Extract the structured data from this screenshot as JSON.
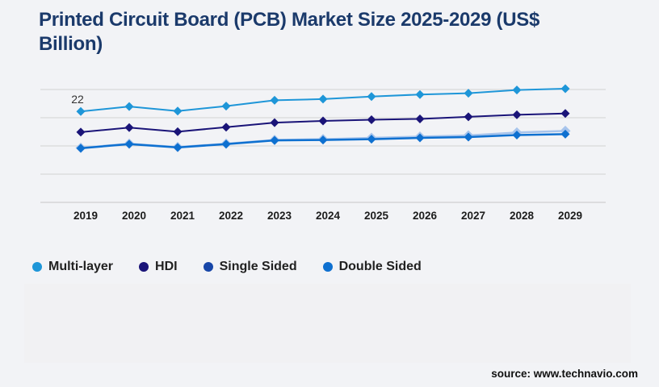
{
  "title": "Printed Circuit Board (PCB) Market Size 2025-2029 (US$ Billion)",
  "source_note": "source: www.technavio.com",
  "legend": {
    "items": [
      {
        "label": "Multi-layer",
        "color": "#1e96d8"
      },
      {
        "label": "HDI",
        "color": "#1a1478"
      },
      {
        "label": "Single Sided",
        "color": "#1746a8"
      },
      {
        "label": "Double Sided",
        "color": "#0e70d0"
      }
    ]
  },
  "chart_data": {
    "type": "line",
    "title": "Printed Circuit Board (PCB) Market Size 2025-2029 (US$ Billion)",
    "x": [
      2019,
      2020,
      2021,
      2022,
      2023,
      2024,
      2025,
      2026,
      2027,
      2028,
      2029
    ],
    "series": [
      {
        "name": "Multi-layer",
        "line_color": "#1e96d8",
        "marker_color": "#1e96d8",
        "values": [
          22,
          23.2,
          22.1,
          23.3,
          24.7,
          25.0,
          25.6,
          26.1,
          26.4,
          27.2,
          27.5
        ]
      },
      {
        "name": "HDI",
        "line_color": "#1a1478",
        "marker_color": "#1a1478",
        "values": [
          17.0,
          18.1,
          17.1,
          18.2,
          19.3,
          19.7,
          20.0,
          20.2,
          20.7,
          21.2,
          21.5
        ]
      },
      {
        "name": "Single Sided",
        "line_color": "#a7c4ec",
        "marker_color": "#a7c4ec",
        "values": [
          13.2,
          14.2,
          13.4,
          14.2,
          15.1,
          15.3,
          15.6,
          15.9,
          16.2,
          16.9,
          17.3
        ]
      },
      {
        "name": "Double Sided",
        "line_color": "#0e70d0",
        "marker_color": "#0e70d0",
        "values": [
          13.1,
          14.1,
          13.3,
          14.1,
          15.0,
          15.1,
          15.3,
          15.6,
          15.8,
          16.3,
          16.5
        ]
      }
    ],
    "point_label": {
      "series": "Multi-layer",
      "x": 2019,
      "text": "22"
    },
    "xlabel": "",
    "ylabel": "",
    "ylim": [
      0,
      31.8
    ],
    "grid": true,
    "legend_position": "bottom"
  },
  "style": {
    "background": "#f2f3f6",
    "title_color": "#1b3a6b",
    "gridline_color": "#d3d3d3",
    "axis_line_color": "#c6c6c6",
    "tick_label_color": "#1c1c1c",
    "point_label_color": "#333333"
  }
}
